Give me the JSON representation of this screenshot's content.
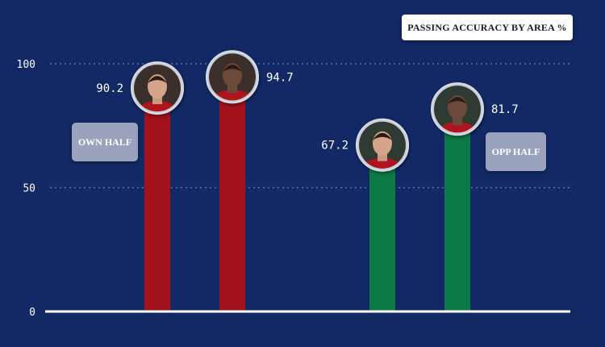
{
  "title": "PASSING ACCURACY BY AREA %",
  "labels": {
    "own_half": "OWN HALF",
    "opp_half": "OPP HALF"
  },
  "colors": {
    "background": "#122966",
    "own_half_bar": "#a3111c",
    "opp_half_bar": "#0b7a47",
    "gridline": "#5a73b3",
    "baseline": "#ffffff",
    "text": "#ffffff"
  },
  "chart_data": {
    "type": "bar",
    "title": "PASSING ACCURACY BY AREA %",
    "xlabel": "",
    "ylabel": "",
    "ylim": [
      0,
      100
    ],
    "yticks": [
      0,
      50,
      100
    ],
    "grid": true,
    "groups": [
      "OWN HALF",
      "OPP HALF"
    ],
    "bars": [
      {
        "group": "OWN HALF",
        "value": 90.2,
        "label": "90.2",
        "icon": "player-photo-icon"
      },
      {
        "group": "OWN HALF",
        "value": 94.7,
        "label": "94.7",
        "icon": "player-photo-icon"
      },
      {
        "group": "OPP HALF",
        "value": 67.2,
        "label": "67.2",
        "icon": "player-photo-icon"
      },
      {
        "group": "OPP HALF",
        "value": 81.7,
        "label": "81.7",
        "icon": "player-photo-icon"
      }
    ]
  }
}
